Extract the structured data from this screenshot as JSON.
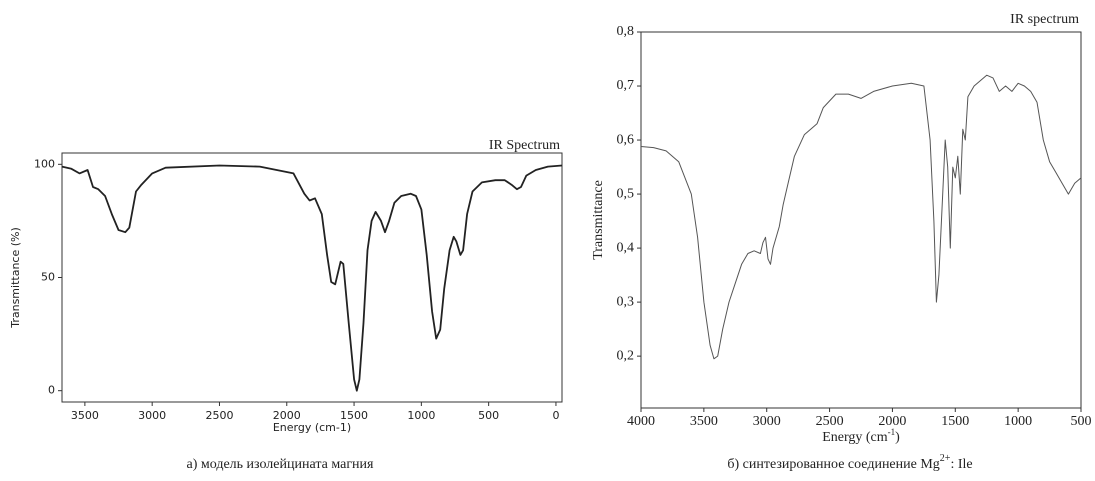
{
  "chart_data": [
    {
      "type": "line",
      "title": "IR Spectrum",
      "xlabel": "Energy (cm-1)",
      "ylabel": "Transmittance (%)",
      "caption": "а) модель изолейцината магния",
      "color": "#222222",
      "xlim": [
        3670,
        -45
      ],
      "ylim": [
        -5,
        105
      ],
      "xticks": [
        3500,
        3000,
        2500,
        2000,
        1500,
        1000,
        500,
        0
      ],
      "yticks": [
        0,
        50,
        100
      ],
      "x": [
        3670,
        3600,
        3540,
        3480,
        3440,
        3400,
        3350,
        3300,
        3250,
        3200,
        3170,
        3120,
        3080,
        3000,
        2900,
        2500,
        2200,
        1950,
        1870,
        1830,
        1790,
        1740,
        1700,
        1670,
        1640,
        1600,
        1580,
        1540,
        1500,
        1480,
        1460,
        1430,
        1400,
        1370,
        1340,
        1300,
        1270,
        1240,
        1200,
        1150,
        1080,
        1040,
        1000,
        960,
        920,
        890,
        860,
        830,
        790,
        760,
        740,
        710,
        690,
        660,
        620,
        550,
        450,
        380,
        330,
        290,
        260,
        220,
        150,
        60,
        -45
      ],
      "values": [
        99,
        98,
        96,
        97.5,
        90,
        89,
        86,
        78,
        71,
        70,
        72,
        88,
        91,
        96,
        98.5,
        99.5,
        99,
        96,
        87,
        84,
        85,
        78,
        60,
        48,
        47,
        57,
        56,
        30,
        5,
        0,
        5,
        30,
        62,
        75,
        79,
        75,
        70,
        75,
        83,
        86,
        87,
        86,
        80,
        60,
        35,
        23,
        27,
        45,
        62,
        68,
        66,
        60,
        62,
        78,
        88,
        92,
        93,
        93,
        91,
        89,
        90,
        95,
        97.5,
        99,
        99.5
      ]
    },
    {
      "type": "line",
      "title": "IR spectrum",
      "xlabel": "Energy (cm",
      "xlabel_sup": "-1",
      "xlabel_end": ")",
      "ylabel": "Transmittance",
      "caption": "б) синтезированное соединение Mg",
      "caption_sup": "2+",
      "caption_end": ": Ile",
      "color": "#555555",
      "xlim": [
        4000,
        500
      ],
      "ylim": [
        0.104,
        0.8
      ],
      "xticks": [
        4000,
        3500,
        3000,
        2500,
        2000,
        1500,
        1000,
        500
      ],
      "yticks": [
        {
          "value": 0.2,
          "label": "0,2"
        },
        {
          "value": 0.3,
          "label": "0,3"
        },
        {
          "value": 0.4,
          "label": "0,4"
        },
        {
          "value": 0.5,
          "label": "0,5"
        },
        {
          "value": 0.6,
          "label": "0,6"
        },
        {
          "value": 0.7,
          "label": "0,7"
        },
        {
          "value": 0.8,
          "label": "0,8"
        }
      ],
      "x": [
        4000,
        3900,
        3800,
        3700,
        3600,
        3550,
        3500,
        3450,
        3420,
        3390,
        3350,
        3300,
        3250,
        3200,
        3150,
        3100,
        3050,
        3030,
        3010,
        2990,
        2970,
        2950,
        2900,
        2870,
        2830,
        2780,
        2700,
        2600,
        2550,
        2450,
        2350,
        2250,
        2150,
        2000,
        1850,
        1750,
        1700,
        1670,
        1650,
        1630,
        1600,
        1580,
        1560,
        1540,
        1520,
        1500,
        1480,
        1460,
        1440,
        1420,
        1400,
        1350,
        1300,
        1250,
        1200,
        1150,
        1100,
        1050,
        1000,
        950,
        900,
        850,
        800,
        750,
        700,
        650,
        600,
        550,
        500
      ],
      "values": [
        0.588,
        0.586,
        0.58,
        0.56,
        0.5,
        0.42,
        0.3,
        0.22,
        0.195,
        0.2,
        0.25,
        0.3,
        0.335,
        0.37,
        0.39,
        0.395,
        0.39,
        0.41,
        0.42,
        0.38,
        0.37,
        0.4,
        0.44,
        0.48,
        0.52,
        0.57,
        0.61,
        0.63,
        0.66,
        0.685,
        0.685,
        0.677,
        0.69,
        0.7,
        0.705,
        0.7,
        0.6,
        0.45,
        0.3,
        0.35,
        0.5,
        0.6,
        0.55,
        0.4,
        0.55,
        0.53,
        0.57,
        0.5,
        0.62,
        0.6,
        0.68,
        0.7,
        0.71,
        0.72,
        0.715,
        0.69,
        0.7,
        0.69,
        0.705,
        0.7,
        0.69,
        0.67,
        0.6,
        0.56,
        0.54,
        0.52,
        0.5,
        0.52,
        0.53
      ]
    }
  ]
}
